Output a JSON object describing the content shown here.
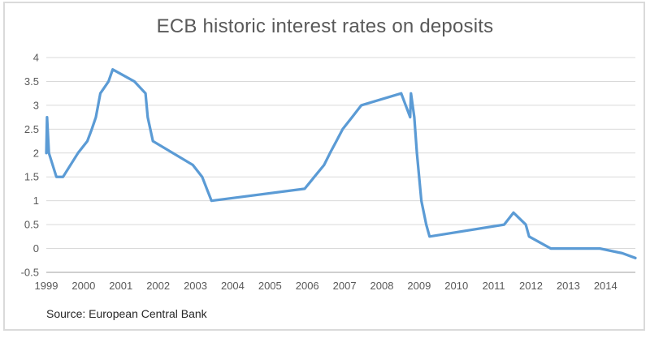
{
  "chart_data": {
    "type": "line",
    "title": "ECB historic interest rates on deposits",
    "source_note": "Source: European Central Bank",
    "legend": "none",
    "grid": "horizontal-only",
    "x_axis": {
      "tick_labels": [
        "1999",
        "2000",
        "2001",
        "2002",
        "2003",
        "2004",
        "2005",
        "2006",
        "2007",
        "2008",
        "2009",
        "2010",
        "2011",
        "2012",
        "2013",
        "2014"
      ],
      "tick_values": [
        1999,
        2000,
        2001,
        2002,
        2003,
        2004,
        2005,
        2006,
        2007,
        2008,
        2009,
        2010,
        2011,
        2012,
        2013,
        2014
      ],
      "range": [
        1999,
        2014.8
      ]
    },
    "y_axis": {
      "tick_labels": [
        "4",
        "3.5",
        "3",
        "2.5",
        "2",
        "1.5",
        "1",
        "0.5",
        "0",
        "-0.5"
      ],
      "tick_values": [
        4,
        3.5,
        3,
        2.5,
        2,
        1.5,
        1,
        0.5,
        0,
        -0.5
      ],
      "range": [
        -0.5,
        4
      ]
    },
    "series": [
      {
        "color": "#5B9BD5",
        "points": [
          [
            1999.0,
            2.0
          ],
          [
            1999.02,
            2.75
          ],
          [
            1999.07,
            2.0
          ],
          [
            1999.27,
            1.5
          ],
          [
            1999.45,
            1.5
          ],
          [
            1999.85,
            2.0
          ],
          [
            2000.1,
            2.25
          ],
          [
            2000.22,
            2.5
          ],
          [
            2000.33,
            2.75
          ],
          [
            2000.45,
            3.25
          ],
          [
            2000.67,
            3.5
          ],
          [
            2000.78,
            3.75
          ],
          [
            2001.36,
            3.5
          ],
          [
            2001.66,
            3.25
          ],
          [
            2001.72,
            2.75
          ],
          [
            2001.86,
            2.25
          ],
          [
            2002.93,
            1.75
          ],
          [
            2003.18,
            1.5
          ],
          [
            2003.43,
            1.0
          ],
          [
            2005.93,
            1.25
          ],
          [
            2006.19,
            1.5
          ],
          [
            2006.45,
            1.75
          ],
          [
            2006.61,
            2.0
          ],
          [
            2006.78,
            2.25
          ],
          [
            2006.95,
            2.5
          ],
          [
            2007.2,
            2.75
          ],
          [
            2007.45,
            3.0
          ],
          [
            2008.52,
            3.25
          ],
          [
            2008.76,
            2.75
          ],
          [
            2008.78,
            3.25
          ],
          [
            2008.87,
            2.75
          ],
          [
            2008.94,
            2.0
          ],
          [
            2009.06,
            1.0
          ],
          [
            2009.19,
            0.5
          ],
          [
            2009.28,
            0.25
          ],
          [
            2011.28,
            0.5
          ],
          [
            2011.53,
            0.75
          ],
          [
            2011.86,
            0.5
          ],
          [
            2011.95,
            0.25
          ],
          [
            2012.53,
            0.0
          ],
          [
            2013.85,
            0.0
          ],
          [
            2014.45,
            -0.1
          ],
          [
            2014.8,
            -0.2
          ]
        ]
      }
    ],
    "style": {
      "line_color": "#5B9BD5",
      "line_width": 3.25,
      "grid_color": "#D9D9D9",
      "axis_line_color": "#BFBFBF",
      "tick_text_color": "#595959",
      "title_color": "#595959",
      "source_color": "#262626",
      "frame_border_color": "#DADADA",
      "background": "#FFFFFF"
    }
  }
}
